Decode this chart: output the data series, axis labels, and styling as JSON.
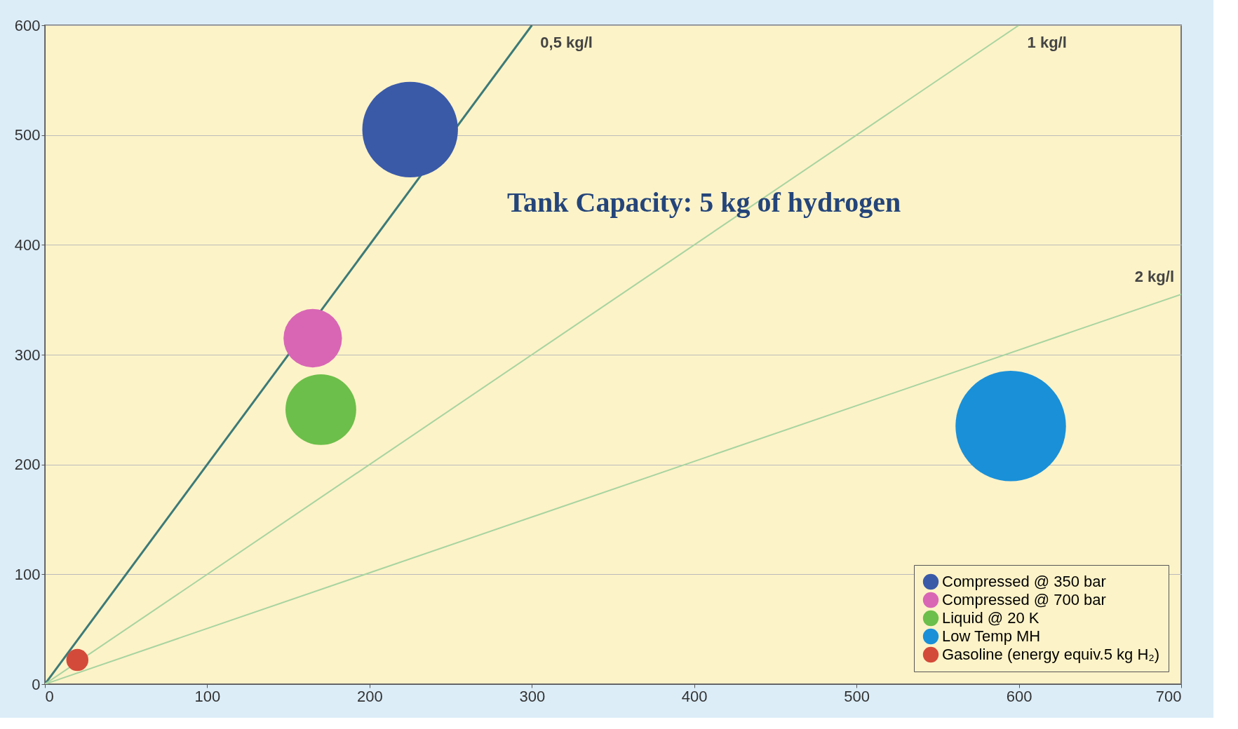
{
  "chart_data": {
    "type": "bubble",
    "annotations": [
      "Tank Capacity: 5 kg of hydrogen"
    ],
    "xlim": [
      0,
      700
    ],
    "xticks": [
      0,
      100,
      200,
      300,
      400,
      500,
      600,
      700
    ],
    "ylim": [
      0,
      600
    ],
    "yticks": [
      0,
      100,
      200,
      300,
      400,
      500,
      600
    ],
    "grid": "y",
    "legend": "bottom right",
    "series": [
      {
        "name": "0,5 kg/l",
        "type": "line",
        "color": "#3c7a78",
        "x": [
          0,
          300
        ],
        "values": [
          0,
          600
        ]
      },
      {
        "name": "1 kg/l",
        "type": "line",
        "color": "#a8d4a0",
        "x": [
          0,
          600
        ],
        "values": [
          0,
          600
        ]
      },
      {
        "name": "2 kg/l",
        "type": "line",
        "color": "#a8d4a0",
        "x": [
          0,
          700
        ],
        "values": [
          0,
          355
        ]
      },
      {
        "name": "Compressed @ 350 bar",
        "color": "#3a5aa8",
        "x": [
          225
        ],
        "values": [
          505
        ],
        "sizes": [
          0.75
        ]
      },
      {
        "name": "Compressed @ 700 bar",
        "color": "#d966b5",
        "x": [
          165
        ],
        "values": [
          315
        ],
        "sizes": [
          0.28
        ]
      },
      {
        "name": "Liquid @ 20 K",
        "color": "#6cbf4a",
        "x": [
          170
        ],
        "values": [
          250
        ],
        "sizes": [
          0.41
        ]
      },
      {
        "name": "Low Temp MH",
        "color": "#1a90d8",
        "x": [
          595
        ],
        "values": [
          235
        ],
        "sizes": [
          1
        ]
      },
      {
        "name": "Gasoline (energy equiv.5 kg H₂)",
        "color": "#d44a3a",
        "x": [
          20
        ],
        "values": [
          22
        ],
        "sizes": [
          0.04
        ]
      }
    ]
  }
}
